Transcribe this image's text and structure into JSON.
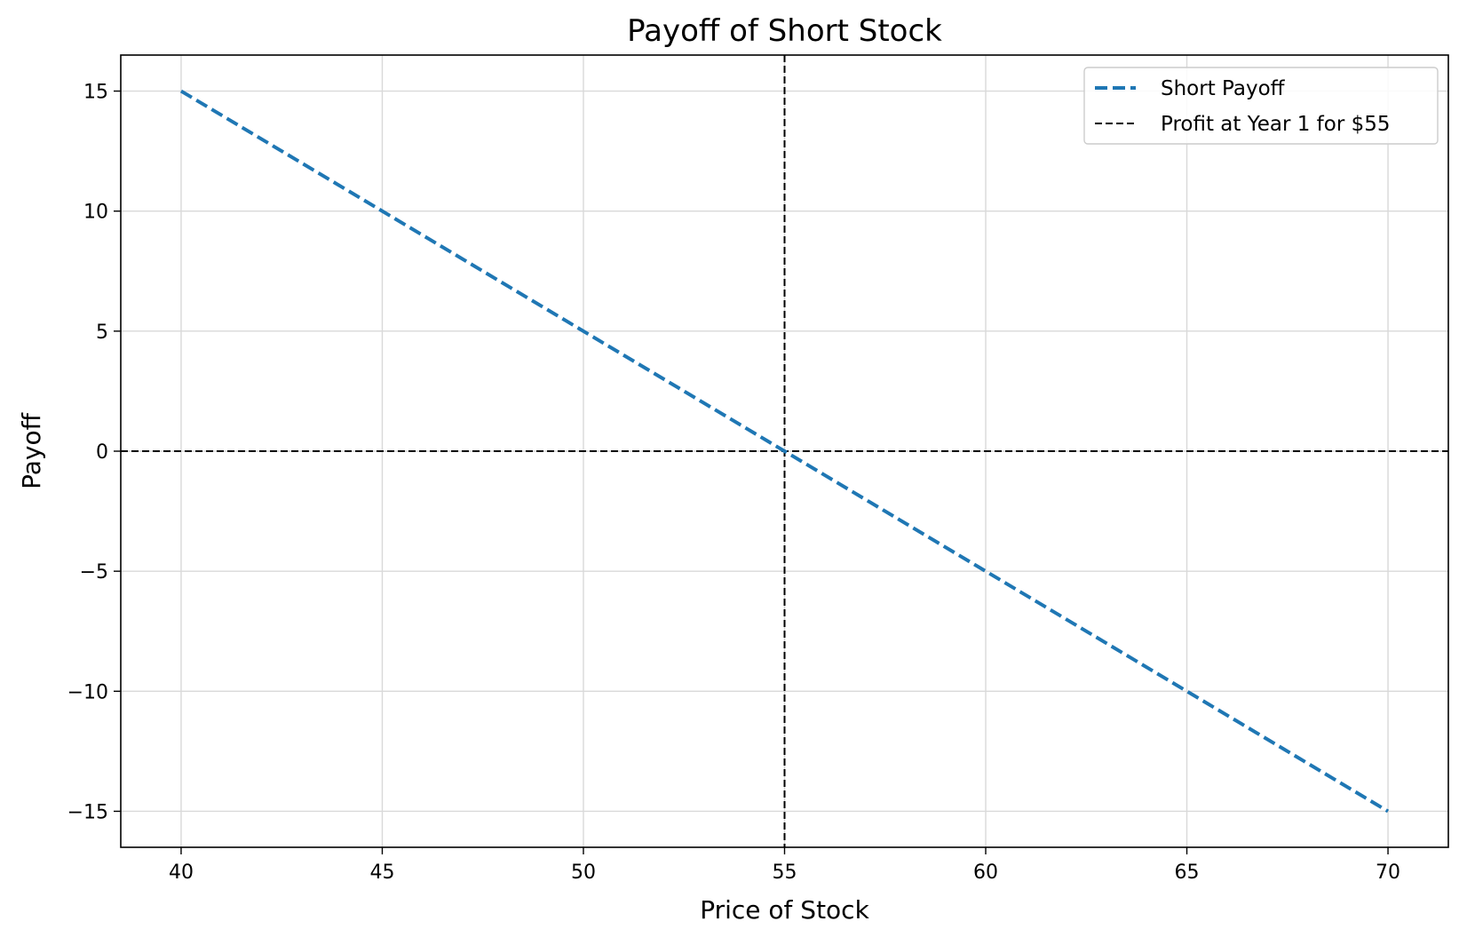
{
  "chart_data": {
    "type": "line",
    "title": "Payoff of Short Stock",
    "xlabel": "Price of Stock",
    "ylabel": "Payoff",
    "xlim": [
      38.5,
      71.5
    ],
    "ylim": [
      -16.5,
      16.5
    ],
    "x_ticks": [
      40,
      45,
      50,
      55,
      60,
      65,
      70
    ],
    "y_ticks": [
      -15,
      -10,
      -5,
      0,
      5,
      10,
      15
    ],
    "x_tick_labels": [
      "40",
      "45",
      "50",
      "55",
      "60",
      "65",
      "70"
    ],
    "y_tick_labels": [
      "−15",
      "−10",
      "−5",
      "0",
      "5",
      "10",
      "15"
    ],
    "grid": true,
    "legend_position": "top-right",
    "series": [
      {
        "name": "Short Payoff",
        "style": "dashed",
        "color": "#1f77b4",
        "x": [
          40,
          70
        ],
        "y": [
          15,
          -15
        ]
      }
    ],
    "reference_lines": [
      {
        "name": "Profit at Year 1 for $55",
        "orientation": "vertical",
        "value": 55,
        "style": "dashed",
        "color": "#000000"
      },
      {
        "orientation": "horizontal",
        "value": 0,
        "style": "dashed",
        "color": "#000000"
      }
    ],
    "colors": {
      "grid": "#d9d9d9",
      "axes": "#000000"
    }
  }
}
